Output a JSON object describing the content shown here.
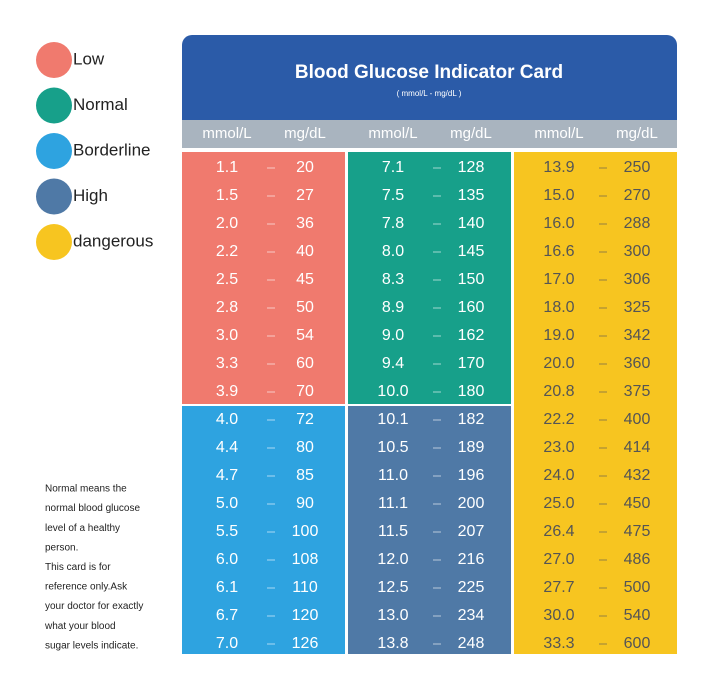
{
  "legend": [
    {
      "label": "Low",
      "color": "#f07a6e"
    },
    {
      "label": "Normal",
      "color": "#17a08a"
    },
    {
      "label": "Borderline",
      "color": "#2ea3e0"
    },
    {
      "label": "High",
      "color": "#4f79a6"
    },
    {
      "label": "dangerous",
      "color": "#f7c520"
    }
  ],
  "note": [
    "Normal means the",
    "normal blood glucose",
    "level of a healthy",
    "person.",
    "This card is for",
    "reference only.Ask",
    "your doctor for exactly",
    "what your blood",
    "sugar levels indicate."
  ],
  "card": {
    "title": "Blood Glucose Indicator Card",
    "subtitle": "( mmol/L - mg/dL )",
    "headers": [
      "mmol/L",
      "mg/dL",
      "mmol/L",
      "mg/dL",
      "mmol/L",
      "mg/dL"
    ],
    "columns": [
      {
        "blocks": [
          {
            "color": "#f07a6e",
            "rows": [
              [
                "1.1",
                "20"
              ],
              [
                "1.5",
                "27"
              ],
              [
                "2.0",
                "36"
              ],
              [
                "2.2",
                "40"
              ],
              [
                "2.5",
                "45"
              ],
              [
                "2.8",
                "50"
              ],
              [
                "3.0",
                "54"
              ],
              [
                "3.3",
                "60"
              ],
              [
                "3.9",
                "70"
              ]
            ]
          },
          {
            "color": "#2ea3e0",
            "rows": [
              [
                "4.0",
                "72"
              ],
              [
                "4.4",
                "80"
              ],
              [
                "4.7",
                "85"
              ],
              [
                "5.0",
                "90"
              ],
              [
                "5.5",
                "100"
              ],
              [
                "6.0",
                "108"
              ],
              [
                "6.1",
                "110"
              ],
              [
                "6.7",
                "120"
              ],
              [
                "7.0",
                "126"
              ]
            ]
          }
        ]
      },
      {
        "blocks": [
          {
            "color": "#17a08a",
            "rows": [
              [
                "7.1",
                "128"
              ],
              [
                "7.5",
                "135"
              ],
              [
                "7.8",
                "140"
              ],
              [
                "8.0",
                "145"
              ],
              [
                "8.3",
                "150"
              ],
              [
                "8.9",
                "160"
              ],
              [
                "9.0",
                "162"
              ],
              [
                "9.4",
                "170"
              ],
              [
                "10.0",
                "180"
              ]
            ]
          },
          {
            "color": "#4f79a6",
            "rows": [
              [
                "10.1",
                "182"
              ],
              [
                "10.5",
                "189"
              ],
              [
                "11.0",
                "196"
              ],
              [
                "11.1",
                "200"
              ],
              [
                "11.5",
                "207"
              ],
              [
                "12.0",
                "216"
              ],
              [
                "12.5",
                "225"
              ],
              [
                "13.0",
                "234"
              ],
              [
                "13.8",
                "248"
              ]
            ]
          }
        ]
      },
      {
        "blocks": [
          {
            "color": "#f7c520",
            "rows": [
              [
                "13.9",
                "250"
              ],
              [
                "15.0",
                "270"
              ],
              [
                "16.0",
                "288"
              ],
              [
                "16.6",
                "300"
              ],
              [
                "17.0",
                "306"
              ],
              [
                "18.0",
                "325"
              ],
              [
                "19.0",
                "342"
              ],
              [
                "20.0",
                "360"
              ],
              [
                "20.8",
                "375"
              ],
              [
                "22.2",
                "400"
              ],
              [
                "23.0",
                "414"
              ],
              [
                "24.0",
                "432"
              ],
              [
                "25.0",
                "450"
              ],
              [
                "26.4",
                "475"
              ],
              [
                "27.0",
                "486"
              ],
              [
                "27.7",
                "500"
              ],
              [
                "30.0",
                "540"
              ],
              [
                "33.3",
                "600"
              ]
            ]
          }
        ]
      }
    ]
  }
}
